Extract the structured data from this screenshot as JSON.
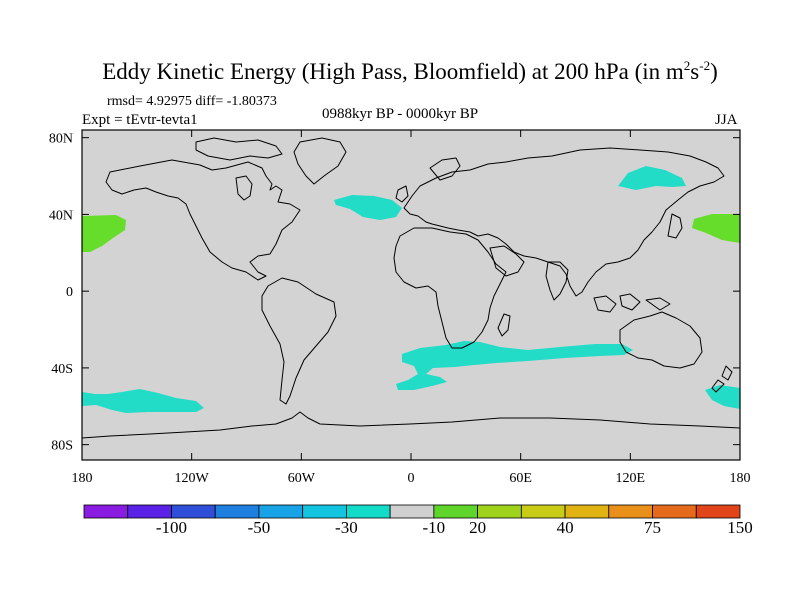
{
  "title": {
    "main": "Eddy Kinetic Energy (High Pass, Bloomfield) at 200 hPa (in m",
    "sup1": "2",
    "mid": "s",
    "sup2": "-2",
    "end": ")"
  },
  "stats": {
    "rmsd": "rmsd= 4.92975 diff= -1.80373",
    "experiment": "Expt = tEvtr-tevta1",
    "period": "0988kyr BP - 0000kyr BP",
    "season": "JJA"
  },
  "axes": {
    "lat_labels": [
      "80N",
      "40N",
      "0",
      "40S",
      "80S"
    ],
    "lat_values": [
      80,
      40,
      0,
      -40,
      -80
    ],
    "lon_labels": [
      "180",
      "120W",
      "60W",
      "0",
      "60E",
      "120E",
      "180"
    ],
    "lon_values": [
      -180,
      -120,
      -60,
      0,
      60,
      120,
      180
    ]
  },
  "colorbar": {
    "colors": [
      "#8a1be0",
      "#5a22e6",
      "#2f4fd8",
      "#1f7fe0",
      "#18a3e6",
      "#12c4e0",
      "#12dcc8",
      "#cfcfcf",
      "#5fd42a",
      "#9fd21a",
      "#c8cc16",
      "#e0b212",
      "#e8901a",
      "#e66a1c",
      "#e04418"
    ],
    "labels": [
      "-100",
      "-50",
      "-30",
      "-10",
      "20",
      "40",
      "75",
      "150"
    ],
    "label_boundaries": [
      2,
      4,
      6,
      8,
      9,
      11,
      13,
      15
    ]
  },
  "map_colors": {
    "background": "#d3d3d3",
    "positive_fill": "#66dd2a",
    "negative_fill": "#22dcc8"
  }
}
